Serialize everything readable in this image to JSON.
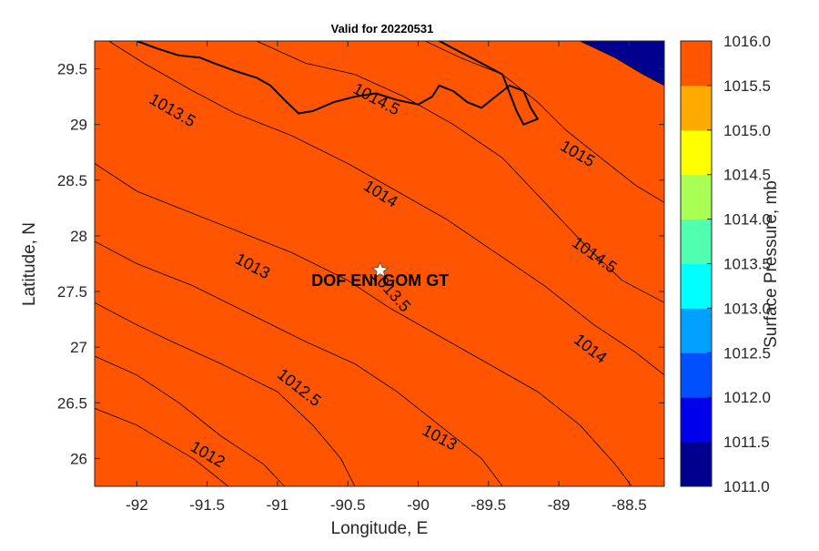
{
  "chart_data": {
    "type": "heatmap",
    "subtype": "filled-contour-map",
    "title": "Valid for 20220531",
    "xlabel": "Longitude, E",
    "ylabel": "Latitude, N",
    "xlim": [
      -92.3,
      -88.25
    ],
    "ylim": [
      25.75,
      29.75
    ],
    "x_ticks": [
      -92,
      -91.5,
      -91,
      -90.5,
      -90,
      -89.5,
      -89,
      -88.5
    ],
    "x_tick_labels": [
      "-92",
      "-91.5",
      "-91",
      "-90.5",
      "-90",
      "-89.5",
      "-89",
      "-88.5"
    ],
    "y_ticks": [
      26,
      26.5,
      27,
      27.5,
      28,
      28.5,
      29,
      29.5
    ],
    "y_tick_labels": [
      "26",
      "26.5",
      "27",
      "27.5",
      "28",
      "28.5",
      "29",
      "29.5"
    ],
    "grid": false,
    "colorbar": {
      "label": "Surface Pressure, mb",
      "position": "right",
      "levels": [
        1011.0,
        1011.5,
        1012.0,
        1012.5,
        1013.0,
        1013.5,
        1014.0,
        1014.5,
        1015.0,
        1015.5,
        1016.0
      ],
      "tick_labels": [
        "1011.0",
        "1011.5",
        "1012.0",
        "1012.5",
        "1013.0",
        "1013.5",
        "1014.0",
        "1014.5",
        "1015.0",
        "1015.5",
        "1016.0"
      ],
      "colors": [
        "#00008f",
        "#0000ea",
        "#0050ff",
        "#00a0ff",
        "#00ffff",
        "#50ffaf",
        "#aaff55",
        "#ffff00",
        "#ffaa00",
        "#ff5500"
      ]
    },
    "contours": [
      {
        "level": 1011.5,
        "points": [
          [
            -92.3,
            26.45
          ],
          [
            -92.0,
            26.3
          ],
          [
            -91.6,
            26.0
          ],
          [
            -91.35,
            25.75
          ]
        ]
      },
      {
        "level": 1012.0,
        "points": [
          [
            -92.3,
            26.92
          ],
          [
            -92.0,
            26.75
          ],
          [
            -91.7,
            26.5
          ],
          [
            -91.4,
            26.2
          ],
          [
            -91.1,
            25.95
          ],
          [
            -90.95,
            25.75
          ]
        ]
      },
      {
        "level": 1012.5,
        "points": [
          [
            -92.3,
            27.4
          ],
          [
            -92.0,
            27.2
          ],
          [
            -91.75,
            27.05
          ],
          [
            -91.4,
            26.85
          ],
          [
            -91.0,
            26.6
          ],
          [
            -90.75,
            26.3
          ],
          [
            -90.55,
            26.0
          ],
          [
            -90.45,
            25.75
          ]
        ]
      },
      {
        "level": 1013.0,
        "points": [
          [
            -92.3,
            27.95
          ],
          [
            -92.0,
            27.75
          ],
          [
            -91.6,
            27.55
          ],
          [
            -91.2,
            27.3
          ],
          [
            -90.8,
            27.05
          ],
          [
            -90.45,
            26.85
          ],
          [
            -90.15,
            26.6
          ],
          [
            -89.85,
            26.3
          ],
          [
            -89.55,
            26.0
          ],
          [
            -89.4,
            25.75
          ]
        ]
      },
      {
        "level": 1013.5,
        "points": [
          [
            -92.3,
            28.65
          ],
          [
            -92.0,
            28.4
          ],
          [
            -91.7,
            28.25
          ],
          [
            -91.3,
            28.05
          ],
          [
            -90.9,
            27.85
          ],
          [
            -90.5,
            27.6
          ],
          [
            -90.2,
            27.35
          ],
          [
            -89.85,
            27.1
          ],
          [
            -89.5,
            26.85
          ],
          [
            -89.15,
            26.6
          ],
          [
            -88.85,
            26.3
          ],
          [
            -88.6,
            25.95
          ],
          [
            -88.48,
            25.75
          ]
        ]
      },
      {
        "level": 1014.0,
        "points": [
          [
            -92.2,
            29.75
          ],
          [
            -91.95,
            29.55
          ],
          [
            -91.6,
            29.3
          ],
          [
            -91.3,
            29.1
          ],
          [
            -90.9,
            28.9
          ],
          [
            -90.5,
            28.65
          ],
          [
            -90.15,
            28.4
          ],
          [
            -89.8,
            28.15
          ],
          [
            -89.45,
            27.85
          ],
          [
            -89.1,
            27.55
          ],
          [
            -88.75,
            27.2
          ],
          [
            -88.45,
            26.95
          ],
          [
            -88.25,
            26.75
          ]
        ]
      },
      {
        "level": 1014.5,
        "points": [
          [
            -91.15,
            29.75
          ],
          [
            -90.8,
            29.55
          ],
          [
            -90.45,
            29.45
          ],
          [
            -90.1,
            29.25
          ],
          [
            -89.75,
            29.0
          ],
          [
            -89.4,
            28.7
          ],
          [
            -89.1,
            28.3
          ],
          [
            -88.8,
            27.9
          ],
          [
            -88.55,
            27.6
          ],
          [
            -88.25,
            27.4
          ]
        ]
      },
      {
        "level": 1015.0,
        "points": [
          [
            -89.95,
            29.75
          ],
          [
            -89.7,
            29.6
          ],
          [
            -89.4,
            29.45
          ],
          [
            -89.15,
            29.2
          ],
          [
            -88.95,
            28.95
          ],
          [
            -88.7,
            28.7
          ],
          [
            -88.45,
            28.45
          ],
          [
            -88.25,
            28.3
          ]
        ]
      },
      {
        "level": 1015.5,
        "points": [
          [
            -88.85,
            29.75
          ],
          [
            -88.6,
            29.6
          ],
          [
            -88.4,
            29.45
          ],
          [
            -88.25,
            29.35
          ]
        ]
      }
    ],
    "contour_labels": [
      {
        "text": "1013.5",
        "lon": -91.75,
        "lat": 29.12,
        "angle": 30
      },
      {
        "text": "1014.5",
        "lon": -90.3,
        "lat": 29.22,
        "angle": 28
      },
      {
        "text": "1015",
        "lon": -88.87,
        "lat": 28.73,
        "angle": 30
      },
      {
        "text": "1014",
        "lon": -90.27,
        "lat": 28.37,
        "angle": 32
      },
      {
        "text": "1014.5",
        "lon": -88.75,
        "lat": 27.82,
        "angle": 35
      },
      {
        "text": "1013",
        "lon": -91.18,
        "lat": 27.72,
        "angle": 28
      },
      {
        "text": "1013.5",
        "lon": -90.2,
        "lat": 27.5,
        "angle": 48
      },
      {
        "text": "1014",
        "lon": -88.78,
        "lat": 26.98,
        "angle": 38
      },
      {
        "text": "1012.5",
        "lon": -90.85,
        "lat": 26.63,
        "angle": 38
      },
      {
        "text": "1013",
        "lon": -89.85,
        "lat": 26.18,
        "angle": 28
      },
      {
        "text": "1012",
        "lon": -91.5,
        "lat": 26.03,
        "angle": 30
      }
    ],
    "annotations": [
      {
        "text": "DOF ENI GOM GT",
        "lon": -90.27,
        "lat": 27.69,
        "marker": "star"
      }
    ],
    "coastline": [
      [
        -92.0,
        29.75
      ],
      [
        -91.85,
        29.68
      ],
      [
        -91.7,
        29.62
      ],
      [
        -91.55,
        29.6
      ],
      [
        -91.45,
        29.55
      ],
      [
        -91.3,
        29.48
      ],
      [
        -91.15,
        29.42
      ],
      [
        -91.05,
        29.35
      ],
      [
        -90.95,
        29.22
      ],
      [
        -90.85,
        29.1
      ],
      [
        -90.75,
        29.12
      ],
      [
        -90.6,
        29.2
      ],
      [
        -90.45,
        29.25
      ],
      [
        -90.3,
        29.28
      ],
      [
        -90.15,
        29.22
      ],
      [
        -90.0,
        29.18
      ],
      [
        -89.9,
        29.25
      ],
      [
        -89.85,
        29.35
      ],
      [
        -89.75,
        29.3
      ],
      [
        -89.65,
        29.2
      ],
      [
        -89.55,
        29.15
      ],
      [
        -89.45,
        29.25
      ],
      [
        -89.35,
        29.35
      ],
      [
        -89.25,
        29.3
      ],
      [
        -89.2,
        29.15
      ],
      [
        -89.15,
        29.05
      ],
      [
        -89.25,
        29.0
      ],
      [
        -89.3,
        29.12
      ],
      [
        -89.4,
        29.45
      ],
      [
        -89.55,
        29.55
      ],
      [
        -89.7,
        29.65
      ],
      [
        -89.85,
        29.75
      ]
    ]
  }
}
